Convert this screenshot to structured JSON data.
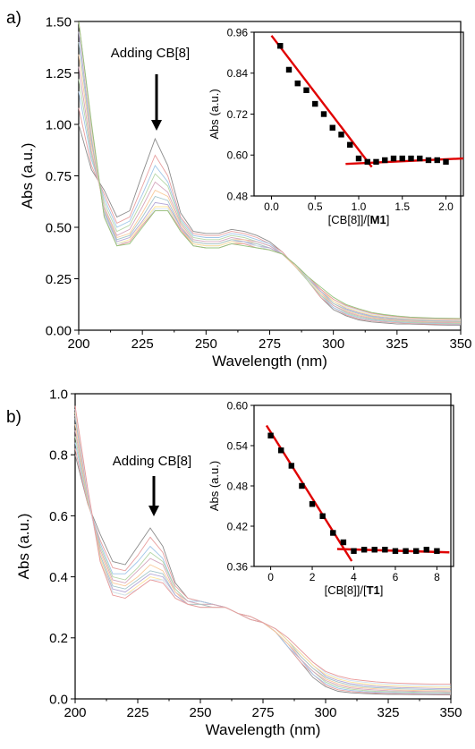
{
  "chart_data": [
    {
      "panel": "a)",
      "type": "line",
      "xlabel": "Wavelength (nm)",
      "ylabel": "Abs (a.u.)",
      "xlim": [
        200,
        350
      ],
      "ylim": [
        0,
        1.5
      ],
      "xticks": [
        "200",
        "225",
        "250",
        "275",
        "300",
        "325",
        "350"
      ],
      "yticks": [
        "0.00",
        "0.25",
        "0.50",
        "0.75",
        "1.00",
        "1.25",
        "1.50"
      ],
      "annotation": "Adding CB[8]",
      "x": [
        200,
        205,
        210,
        215,
        220,
        225,
        230,
        235,
        240,
        245,
        250,
        255,
        260,
        265,
        270,
        275,
        280,
        285,
        290,
        295,
        300,
        305,
        310,
        315,
        320,
        325,
        330,
        335,
        340,
        345,
        350
      ],
      "series": [
        {
          "color": "#8c8c8c",
          "values": [
            1.0,
            0.78,
            0.68,
            0.55,
            0.58,
            0.76,
            0.93,
            0.8,
            0.57,
            0.48,
            0.47,
            0.47,
            0.49,
            0.48,
            0.46,
            0.43,
            0.38,
            0.31,
            0.24,
            0.16,
            0.1,
            0.07,
            0.05,
            0.04,
            0.035,
            0.03,
            0.03,
            0.028,
            0.026,
            0.025,
            0.025
          ]
        },
        {
          "color": "#e8a0a0",
          "values": [
            1.08,
            0.8,
            0.66,
            0.52,
            0.55,
            0.7,
            0.85,
            0.75,
            0.55,
            0.47,
            0.46,
            0.46,
            0.48,
            0.47,
            0.45,
            0.42,
            0.38,
            0.31,
            0.24,
            0.16,
            0.11,
            0.075,
            0.055,
            0.045,
            0.04,
            0.036,
            0.033,
            0.031,
            0.029,
            0.028,
            0.028
          ]
        },
        {
          "color": "#9fc5e8",
          "values": [
            1.16,
            0.83,
            0.64,
            0.5,
            0.53,
            0.66,
            0.8,
            0.72,
            0.54,
            0.46,
            0.45,
            0.45,
            0.47,
            0.46,
            0.44,
            0.42,
            0.37,
            0.31,
            0.24,
            0.17,
            0.11,
            0.08,
            0.06,
            0.05,
            0.044,
            0.04,
            0.036,
            0.034,
            0.032,
            0.031,
            0.03
          ]
        },
        {
          "color": "#b6d7a8",
          "values": [
            1.22,
            0.85,
            0.62,
            0.48,
            0.51,
            0.63,
            0.76,
            0.7,
            0.53,
            0.45,
            0.44,
            0.44,
            0.46,
            0.45,
            0.43,
            0.41,
            0.37,
            0.31,
            0.24,
            0.17,
            0.12,
            0.085,
            0.065,
            0.054,
            0.048,
            0.043,
            0.039,
            0.037,
            0.035,
            0.034,
            0.033
          ]
        },
        {
          "color": "#d5a6bd",
          "values": [
            1.28,
            0.87,
            0.6,
            0.46,
            0.49,
            0.6,
            0.72,
            0.67,
            0.52,
            0.44,
            0.43,
            0.43,
            0.45,
            0.44,
            0.43,
            0.41,
            0.37,
            0.31,
            0.25,
            0.18,
            0.12,
            0.09,
            0.07,
            0.058,
            0.052,
            0.047,
            0.043,
            0.04,
            0.038,
            0.037,
            0.036
          ]
        },
        {
          "color": "#f9cb9c",
          "values": [
            1.34,
            0.9,
            0.59,
            0.45,
            0.47,
            0.57,
            0.68,
            0.65,
            0.51,
            0.43,
            0.42,
            0.42,
            0.44,
            0.44,
            0.42,
            0.4,
            0.37,
            0.31,
            0.25,
            0.18,
            0.13,
            0.095,
            0.075,
            0.062,
            0.055,
            0.05,
            0.046,
            0.043,
            0.041,
            0.04,
            0.039
          ]
        },
        {
          "color": "#a2c4c9",
          "values": [
            1.4,
            0.92,
            0.58,
            0.44,
            0.46,
            0.55,
            0.65,
            0.63,
            0.5,
            0.43,
            0.42,
            0.42,
            0.44,
            0.43,
            0.42,
            0.4,
            0.37,
            0.32,
            0.25,
            0.19,
            0.13,
            0.1,
            0.08,
            0.066,
            0.058,
            0.053,
            0.049,
            0.046,
            0.044,
            0.043,
            0.042
          ]
        },
        {
          "color": "#b4a7d6",
          "values": [
            1.45,
            0.94,
            0.57,
            0.43,
            0.45,
            0.53,
            0.62,
            0.61,
            0.5,
            0.42,
            0.41,
            0.41,
            0.43,
            0.43,
            0.41,
            0.4,
            0.37,
            0.32,
            0.26,
            0.19,
            0.14,
            0.105,
            0.085,
            0.07,
            0.062,
            0.056,
            0.052,
            0.049,
            0.047,
            0.046,
            0.045
          ]
        },
        {
          "color": "#ffe599",
          "values": [
            1.5,
            0.96,
            0.56,
            0.42,
            0.44,
            0.52,
            0.6,
            0.6,
            0.49,
            0.42,
            0.41,
            0.41,
            0.43,
            0.42,
            0.41,
            0.39,
            0.37,
            0.32,
            0.26,
            0.2,
            0.14,
            0.11,
            0.09,
            0.074,
            0.066,
            0.06,
            0.055,
            0.052,
            0.05,
            0.049,
            0.048
          ]
        },
        {
          "color": "#cfe2f3",
          "values": [
            1.55,
            0.98,
            0.56,
            0.42,
            0.43,
            0.51,
            0.59,
            0.59,
            0.49,
            0.41,
            0.4,
            0.4,
            0.42,
            0.42,
            0.41,
            0.39,
            0.37,
            0.32,
            0.26,
            0.2,
            0.15,
            0.115,
            0.095,
            0.078,
            0.07,
            0.063,
            0.058,
            0.055,
            0.053,
            0.052,
            0.051
          ]
        },
        {
          "color": "#ea9999",
          "values": [
            1.6,
            1.0,
            0.55,
            0.41,
            0.43,
            0.51,
            0.58,
            0.58,
            0.49,
            0.41,
            0.4,
            0.4,
            0.42,
            0.42,
            0.4,
            0.39,
            0.37,
            0.32,
            0.26,
            0.2,
            0.15,
            0.12,
            0.1,
            0.082,
            0.073,
            0.066,
            0.061,
            0.058,
            0.056,
            0.055,
            0.054
          ]
        },
        {
          "color": "#93c47d",
          "values": [
            1.65,
            1.01,
            0.55,
            0.41,
            0.42,
            0.5,
            0.58,
            0.58,
            0.48,
            0.41,
            0.4,
            0.4,
            0.42,
            0.41,
            0.4,
            0.39,
            0.37,
            0.32,
            0.26,
            0.21,
            0.16,
            0.125,
            0.104,
            0.086,
            0.076,
            0.069,
            0.064,
            0.061,
            0.059,
            0.058,
            0.057
          ]
        }
      ]
    },
    {
      "panel": "a) inset",
      "type": "scatter",
      "xlabel": "[CB[8]]/[",
      "xlabel_bold": "M1",
      "xlabel_end": "]",
      "ylabel": "Abs (a.u.)",
      "xlim": [
        -0.2,
        2.2
      ],
      "ylim": [
        0.48,
        0.96
      ],
      "xticks": [
        "0.0",
        "0.5",
        "1.0",
        "1.5",
        "2.0"
      ],
      "yticks": [
        "0.48",
        "0.60",
        "0.72",
        "0.84",
        "0.96"
      ],
      "x": [
        0.1,
        0.2,
        0.3,
        0.4,
        0.5,
        0.6,
        0.7,
        0.8,
        0.9,
        1.0,
        1.1,
        1.2,
        1.3,
        1.4,
        1.5,
        1.6,
        1.7,
        1.8,
        1.9,
        2.0
      ],
      "y": [
        0.92,
        0.85,
        0.81,
        0.79,
        0.75,
        0.72,
        0.68,
        0.66,
        0.63,
        0.59,
        0.58,
        0.58,
        0.585,
        0.59,
        0.59,
        0.59,
        0.59,
        0.585,
        0.585,
        0.58
      ],
      "fit_lines": [
        [
          [
            0.0,
            0.95
          ],
          [
            1.15,
            0.565
          ]
        ],
        [
          [
            0.85,
            0.574
          ],
          [
            2.2,
            0.59
          ]
        ]
      ]
    },
    {
      "panel": "b)",
      "type": "line",
      "xlabel": "Wavelength (nm)",
      "ylabel": "Abs (a.u.)",
      "xlim": [
        200,
        350
      ],
      "ylim": [
        0,
        1.0
      ],
      "xticks": [
        "200",
        "225",
        "250",
        "275",
        "300",
        "325",
        "350"
      ],
      "yticks": [
        "0.0",
        "0.2",
        "0.4",
        "0.6",
        "0.8",
        "1.0"
      ],
      "annotation": "Adding CB[8]",
      "x": [
        200,
        205,
        210,
        215,
        220,
        225,
        230,
        235,
        240,
        245,
        250,
        255,
        260,
        265,
        270,
        275,
        280,
        285,
        290,
        295,
        300,
        305,
        310,
        315,
        320,
        325,
        330,
        335,
        340,
        345,
        350
      ],
      "series": [
        {
          "color": "#8c8c8c",
          "values": [
            0.8,
            0.64,
            0.54,
            0.45,
            0.44,
            0.5,
            0.56,
            0.5,
            0.38,
            0.33,
            0.32,
            0.31,
            0.3,
            0.28,
            0.26,
            0.25,
            0.22,
            0.17,
            0.12,
            0.07,
            0.04,
            0.025,
            0.02,
            0.018,
            0.016,
            0.015,
            0.015,
            0.014,
            0.014,
            0.013,
            0.013
          ]
        },
        {
          "color": "#e8a0a0",
          "values": [
            0.82,
            0.64,
            0.52,
            0.43,
            0.42,
            0.47,
            0.53,
            0.48,
            0.37,
            0.33,
            0.32,
            0.31,
            0.3,
            0.28,
            0.26,
            0.25,
            0.22,
            0.17,
            0.12,
            0.08,
            0.045,
            0.03,
            0.024,
            0.021,
            0.019,
            0.018,
            0.017,
            0.016,
            0.016,
            0.015,
            0.015
          ]
        },
        {
          "color": "#9fc5e8",
          "values": [
            0.84,
            0.65,
            0.51,
            0.41,
            0.41,
            0.45,
            0.5,
            0.46,
            0.36,
            0.32,
            0.32,
            0.31,
            0.3,
            0.28,
            0.27,
            0.25,
            0.22,
            0.17,
            0.13,
            0.08,
            0.05,
            0.035,
            0.028,
            0.024,
            0.022,
            0.021,
            0.02,
            0.019,
            0.018,
            0.018,
            0.018
          ]
        },
        {
          "color": "#b6d7a8",
          "values": [
            0.86,
            0.65,
            0.5,
            0.4,
            0.39,
            0.43,
            0.48,
            0.45,
            0.36,
            0.32,
            0.31,
            0.31,
            0.3,
            0.28,
            0.27,
            0.25,
            0.22,
            0.18,
            0.13,
            0.09,
            0.055,
            0.04,
            0.032,
            0.028,
            0.025,
            0.024,
            0.023,
            0.022,
            0.021,
            0.021,
            0.02
          ]
        },
        {
          "color": "#d5a6bd",
          "values": [
            0.88,
            0.66,
            0.49,
            0.39,
            0.38,
            0.42,
            0.46,
            0.44,
            0.35,
            0.32,
            0.31,
            0.31,
            0.3,
            0.28,
            0.27,
            0.25,
            0.22,
            0.18,
            0.13,
            0.09,
            0.06,
            0.045,
            0.036,
            0.032,
            0.029,
            0.027,
            0.026,
            0.025,
            0.024,
            0.024,
            0.023
          ]
        },
        {
          "color": "#f9cb9c",
          "values": [
            0.9,
            0.66,
            0.48,
            0.38,
            0.37,
            0.4,
            0.44,
            0.42,
            0.35,
            0.31,
            0.31,
            0.3,
            0.3,
            0.28,
            0.27,
            0.25,
            0.22,
            0.18,
            0.14,
            0.1,
            0.065,
            0.05,
            0.04,
            0.036,
            0.033,
            0.031,
            0.029,
            0.028,
            0.027,
            0.027,
            0.026
          ]
        },
        {
          "color": "#a2c4c9",
          "values": [
            0.92,
            0.67,
            0.47,
            0.37,
            0.36,
            0.39,
            0.42,
            0.41,
            0.34,
            0.31,
            0.31,
            0.3,
            0.3,
            0.28,
            0.27,
            0.25,
            0.23,
            0.19,
            0.14,
            0.1,
            0.07,
            0.055,
            0.045,
            0.04,
            0.037,
            0.035,
            0.033,
            0.032,
            0.031,
            0.03,
            0.03
          ]
        },
        {
          "color": "#b4a7d6",
          "values": [
            0.93,
            0.67,
            0.46,
            0.36,
            0.35,
            0.38,
            0.41,
            0.4,
            0.34,
            0.31,
            0.3,
            0.3,
            0.3,
            0.28,
            0.27,
            0.25,
            0.23,
            0.19,
            0.15,
            0.11,
            0.075,
            0.06,
            0.05,
            0.045,
            0.041,
            0.039,
            0.037,
            0.036,
            0.035,
            0.034,
            0.034
          ]
        },
        {
          "color": "#ffe599",
          "values": [
            0.94,
            0.68,
            0.46,
            0.35,
            0.34,
            0.37,
            0.4,
            0.39,
            0.33,
            0.31,
            0.3,
            0.3,
            0.3,
            0.28,
            0.27,
            0.25,
            0.23,
            0.19,
            0.15,
            0.11,
            0.08,
            0.065,
            0.055,
            0.05,
            0.046,
            0.043,
            0.041,
            0.04,
            0.039,
            0.038,
            0.038
          ]
        },
        {
          "color": "#cfe2f3",
          "values": [
            0.95,
            0.68,
            0.45,
            0.35,
            0.34,
            0.36,
            0.39,
            0.39,
            0.33,
            0.31,
            0.3,
            0.3,
            0.3,
            0.28,
            0.27,
            0.25,
            0.23,
            0.2,
            0.16,
            0.12,
            0.085,
            0.07,
            0.06,
            0.055,
            0.051,
            0.048,
            0.046,
            0.045,
            0.044,
            0.043,
            0.043
          ]
        },
        {
          "color": "#ea9999",
          "values": [
            0.96,
            0.69,
            0.45,
            0.34,
            0.33,
            0.36,
            0.39,
            0.38,
            0.33,
            0.31,
            0.3,
            0.3,
            0.3,
            0.28,
            0.27,
            0.25,
            0.23,
            0.2,
            0.16,
            0.12,
            0.09,
            0.075,
            0.065,
            0.06,
            0.056,
            0.053,
            0.051,
            0.05,
            0.049,
            0.048,
            0.048
          ]
        }
      ]
    },
    {
      "panel": "b) inset",
      "type": "scatter",
      "xlabel": "[CB[8]]/[",
      "xlabel_bold": "T1",
      "xlabel_end": "]",
      "ylabel": "Abs (a.u.)",
      "xlim": [
        -0.8,
        8.8
      ],
      "ylim": [
        0.36,
        0.6
      ],
      "xticks": [
        "0",
        "2",
        "4",
        "6",
        "8"
      ],
      "yticks": [
        "0.36",
        "0.42",
        "0.48",
        "0.54",
        "0.60"
      ],
      "x": [
        0.0,
        0.5,
        1.0,
        1.5,
        2.0,
        2.5,
        3.0,
        3.5,
        4.0,
        4.5,
        5.0,
        5.5,
        6.0,
        6.5,
        7.0,
        7.5,
        8.0
      ],
      "y": [
        0.555,
        0.533,
        0.51,
        0.48,
        0.453,
        0.435,
        0.41,
        0.396,
        0.383,
        0.385,
        0.385,
        0.385,
        0.383,
        0.383,
        0.383,
        0.385,
        0.383
      ],
      "fit_lines": [
        [
          [
            -0.2,
            0.57
          ],
          [
            3.9,
            0.368
          ]
        ],
        [
          [
            3.2,
            0.386
          ],
          [
            8.6,
            0.381
          ]
        ]
      ]
    }
  ]
}
